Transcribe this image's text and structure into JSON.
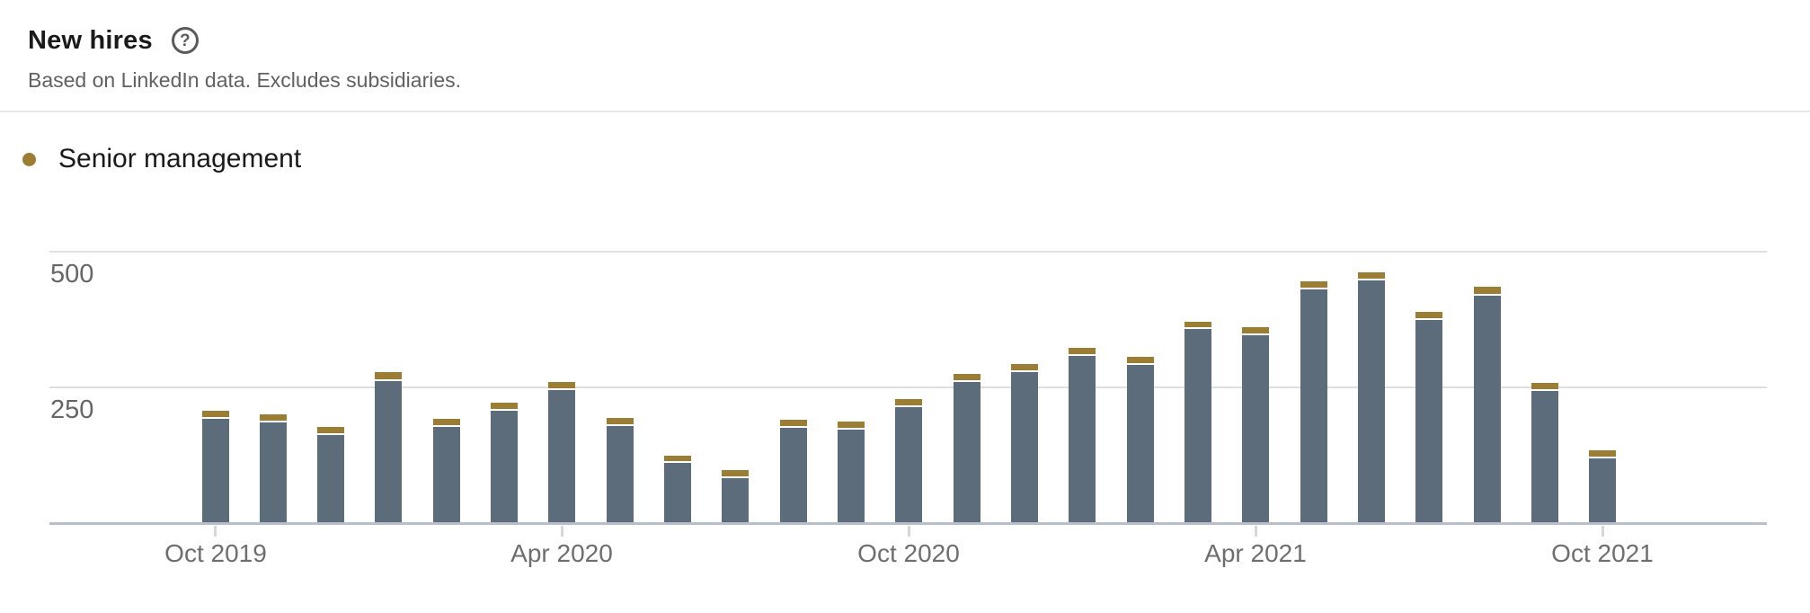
{
  "header": {
    "title": "New hires",
    "subtitle": "Based on LinkedIn data. Excludes subsidiaries.",
    "help_icon_glyph": "?"
  },
  "legend": {
    "items": [
      {
        "label": "Senior management",
        "color": "#9b7e33"
      }
    ]
  },
  "colors": {
    "senior_management": "#9b7e33",
    "unlabeled_bar": "#5c6c7a",
    "gridline": "#dfdfdf",
    "axis_line": "#b7bfca",
    "tick": "#d4d8dd"
  },
  "chart_data": {
    "type": "bar",
    "stacked": true,
    "title": "New hires",
    "x": [
      "Oct 2019",
      "Nov 2019",
      "Dec 2019",
      "Jan 2020",
      "Feb 2020",
      "Mar 2020",
      "Apr 2020",
      "May 2020",
      "Jun 2020",
      "Jul 2020",
      "Aug 2020",
      "Sep 2020",
      "Oct 2020",
      "Nov 2020",
      "Dec 2020",
      "Jan 2021",
      "Feb 2021",
      "Mar 2021",
      "Apr 2021",
      "May 2021",
      "Jun 2021",
      "Jul 2021",
      "Aug 2021",
      "Sep 2021",
      "Oct 2021"
    ],
    "series": [
      {
        "name": "",
        "color": "#5c6c7a",
        "values": [
          193,
          188,
          165,
          262,
          178,
          210,
          247,
          181,
          113,
          84,
          177,
          174,
          215,
          263,
          280,
          310,
          293,
          360,
          349,
          432,
          450,
          376,
          420,
          245,
          122
        ]
      },
      {
        "name": "Senior management",
        "color": "#9b7e33",
        "values": [
          12,
          11,
          11,
          14,
          12,
          11,
          12,
          11,
          10,
          12,
          11,
          12,
          11,
          11,
          12,
          12,
          11,
          10,
          11,
          11,
          11,
          12,
          14,
          12,
          11
        ]
      }
    ],
    "totals": [
      205,
      199,
      176,
      276,
      190,
      221,
      259,
      192,
      123,
      96,
      188,
      186,
      226,
      274,
      292,
      322,
      304,
      370,
      360,
      443,
      461,
      388,
      434,
      257,
      133
    ],
    "y_axis": {
      "ticks": [
        500,
        250
      ],
      "ylim": [
        0,
        560
      ],
      "gridlines": true
    },
    "x_axis": {
      "ticks": [
        {
          "index": 0,
          "label": "Oct 2019"
        },
        {
          "index": 6,
          "label": "Apr 2020"
        },
        {
          "index": 12,
          "label": "Oct 2020"
        },
        {
          "index": 18,
          "label": "Apr 2021"
        },
        {
          "index": 24,
          "label": "Oct 2021"
        }
      ]
    },
    "legend_position": "top-left"
  }
}
